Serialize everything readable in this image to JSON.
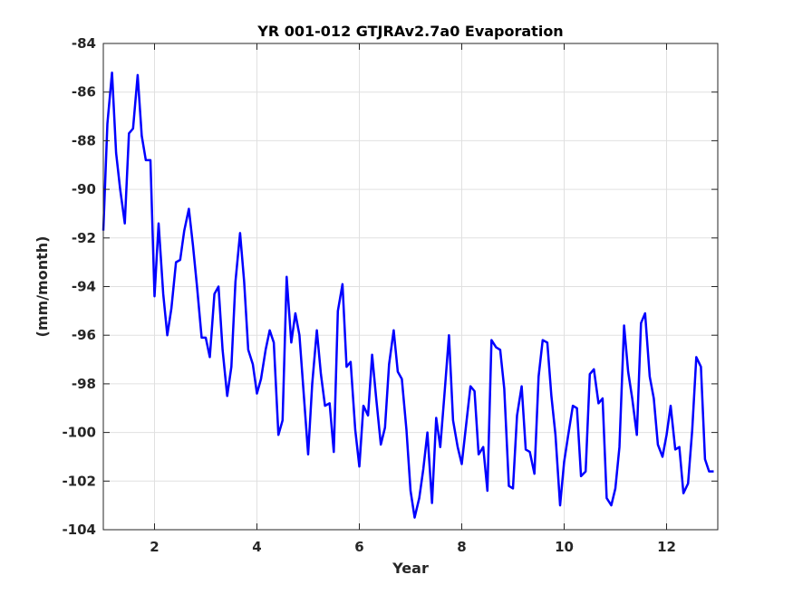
{
  "chart_data": {
    "type": "line",
    "title": "YR 001-012 GTJRAv2.7a0 Evaporation",
    "xlabel": "Year",
    "ylabel": "(mm/month)",
    "xlim": [
      1,
      13
    ],
    "ylim": [
      -104,
      -84
    ],
    "xticks": [
      2,
      4,
      6,
      8,
      10,
      12
    ],
    "yticks": [
      -84,
      -86,
      -88,
      -90,
      -92,
      -94,
      -96,
      -98,
      -100,
      -102,
      -104
    ],
    "grid": true,
    "line_color": "#0000ff",
    "series": [
      {
        "x": [
          1.0,
          1.08,
          1.17,
          1.25,
          1.33,
          1.42,
          1.5,
          1.58,
          1.67,
          1.75,
          1.83,
          1.92,
          2.0,
          2.08,
          2.17,
          2.25,
          2.33,
          2.42,
          2.5,
          2.58,
          2.67,
          2.75,
          2.83,
          2.92,
          3.0,
          3.08,
          3.17,
          3.25,
          3.33,
          3.42,
          3.5,
          3.58,
          3.67,
          3.75,
          3.83,
          3.92,
          4.0,
          4.08,
          4.17,
          4.25,
          4.33,
          4.42,
          4.5,
          4.58,
          4.67,
          4.75,
          4.83,
          4.92,
          5.0,
          5.08,
          5.17,
          5.25,
          5.33,
          5.42,
          5.5,
          5.58,
          5.67,
          5.75,
          5.83,
          5.92,
          6.0,
          6.08,
          6.17,
          6.25,
          6.33,
          6.42,
          6.5,
          6.58,
          6.67,
          6.75,
          6.83,
          6.92,
          7.0,
          7.08,
          7.17,
          7.25,
          7.33,
          7.42,
          7.5,
          7.58,
          7.67,
          7.75,
          7.83,
          7.92,
          8.0,
          8.08,
          8.17,
          8.25,
          8.33,
          8.42,
          8.5,
          8.58,
          8.67,
          8.75,
          8.83,
          8.92,
          9.0,
          9.08,
          9.17,
          9.25,
          9.33,
          9.42,
          9.5,
          9.58,
          9.67,
          9.75,
          9.83,
          9.92,
          10.0,
          10.08,
          10.17,
          10.25,
          10.33,
          10.42,
          10.5,
          10.58,
          10.67,
          10.75,
          10.83,
          10.92,
          11.0,
          11.08,
          11.17,
          11.25,
          11.33,
          11.42,
          11.5,
          11.58,
          11.67,
          11.75,
          11.83,
          11.92,
          12.0,
          12.08,
          12.17,
          12.25,
          12.33,
          12.42,
          12.5,
          12.58,
          12.67,
          12.75,
          12.83,
          12.92
        ],
        "y": [
          -91.7,
          -87.3,
          -85.2,
          -88.5,
          -90.0,
          -91.4,
          -87.7,
          -87.5,
          -85.3,
          -87.8,
          -88.8,
          -88.8,
          -94.4,
          -91.4,
          -94.3,
          -96.0,
          -94.9,
          -93.0,
          -92.9,
          -91.7,
          -90.8,
          -92.3,
          -94.0,
          -96.1,
          -96.1,
          -96.9,
          -94.3,
          -94.0,
          -96.6,
          -98.5,
          -97.3,
          -93.8,
          -91.8,
          -93.8,
          -96.6,
          -97.2,
          -98.4,
          -97.8,
          -96.6,
          -95.8,
          -96.3,
          -100.1,
          -99.5,
          -93.6,
          -96.3,
          -95.1,
          -96.0,
          -98.6,
          -100.9,
          -98.0,
          -95.8,
          -97.6,
          -98.9,
          -98.8,
          -100.8,
          -95.0,
          -93.9,
          -97.3,
          -97.1,
          -99.9,
          -101.4,
          -98.9,
          -99.3,
          -96.8,
          -98.6,
          -100.5,
          -99.8,
          -97.2,
          -95.8,
          -97.5,
          -97.8,
          -99.9,
          -102.4,
          -103.5,
          -102.7,
          -101.5,
          -100.0,
          -102.9,
          -99.4,
          -100.6,
          -98.2,
          -96.0,
          -99.5,
          -100.6,
          -101.3,
          -99.8,
          -98.1,
          -98.3,
          -100.9,
          -100.6,
          -102.4,
          -96.2,
          -96.5,
          -96.6,
          -98.2,
          -102.2,
          -102.3,
          -99.3,
          -98.1,
          -100.7,
          -100.8,
          -101.7,
          -97.7,
          -96.2,
          -96.3,
          -98.5,
          -100.1,
          -103.0,
          -101.2,
          -100.1,
          -98.9,
          -99.0,
          -101.8,
          -101.6,
          -97.6,
          -97.4,
          -98.8,
          -98.6,
          -102.7,
          -103.0,
          -102.3,
          -100.6,
          -95.6,
          -97.5,
          -98.6,
          -100.1,
          -95.5,
          -95.1,
          -97.7,
          -98.6,
          -100.5,
          -101.0,
          -100.1,
          -98.9,
          -100.7,
          -100.6,
          -102.5,
          -102.1,
          -99.9,
          -96.9,
          -97.3,
          -101.1,
          -101.6,
          -101.6
        ]
      }
    ]
  }
}
